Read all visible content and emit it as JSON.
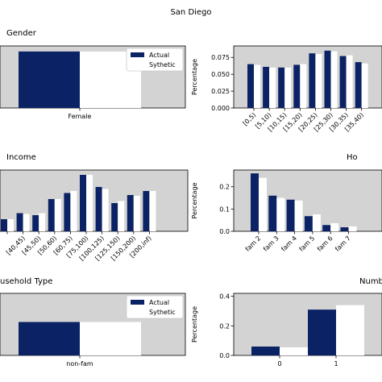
{
  "figure_title": "San Diego",
  "colors": {
    "actual": "#0b2265",
    "synthetic": "#ffffff",
    "plot_bg": "#d3d3d3"
  },
  "legend": {
    "actual": "Actual",
    "synthetic": "Sythetic"
  },
  "chart_data": [
    {
      "id": "gender",
      "type": "bar",
      "title": "Gender",
      "categories": [
        "Female"
      ],
      "series": [
        {
          "name": "Actual",
          "values": [
            0.51
          ]
        },
        {
          "name": "Sythetic",
          "values": [
            0.51
          ]
        }
      ],
      "ylim": [
        0,
        0.56
      ],
      "yticks": [],
      "ylabel": "",
      "legend": "top-right",
      "grid": false
    },
    {
      "id": "age",
      "type": "bar",
      "title": "",
      "categories": [
        "[0,5)",
        "[5,10)",
        "[10,15)",
        "[15,20)",
        "[20,25)",
        "[25,30)",
        "[30,35)",
        "[35,40)"
      ],
      "series": [
        {
          "name": "Actual",
          "values": [
            0.065,
            0.061,
            0.06,
            0.064,
            0.081,
            0.085,
            0.077,
            0.068
          ]
        },
        {
          "name": "Sythetic",
          "values": [
            0.064,
            0.06,
            0.06,
            0.065,
            0.08,
            0.084,
            0.078,
            0.066
          ]
        }
      ],
      "ylim": [
        0,
        0.092
      ],
      "yticks": [
        "0.000",
        "0.025",
        "0.050",
        "0.075"
      ],
      "ytick_values": [
        0,
        0.025,
        0.05,
        0.075
      ],
      "ylabel": "Percentage",
      "grid": false
    },
    {
      "id": "income",
      "type": "bar",
      "title": "Income",
      "categories": [
        "",
        "[40,45)",
        "[45,50)",
        "[50,60)",
        "[60,75)",
        "[75,100)",
        "[100,125)",
        "[125,150)",
        "[150,200)",
        "[200,inf)"
      ],
      "series": [
        {
          "name": "Actual",
          "values": [
            0.03,
            0.045,
            0.04,
            0.08,
            0.095,
            0.14,
            0.11,
            0.07,
            0.09,
            0.1
          ]
        },
        {
          "name": "Sythetic",
          "values": [
            0.03,
            0.043,
            0.045,
            0.08,
            0.1,
            0.14,
            0.105,
            0.075,
            0.088,
            0.1
          ]
        }
      ],
      "ylim": [
        0,
        0.152
      ],
      "yticks": [],
      "ylabel": "",
      "grid": false
    },
    {
      "id": "household_size",
      "type": "bar",
      "title": "Ho",
      "categories": [
        "fam 2",
        "fam 3",
        "fam 4",
        "fam 5",
        "fam 6",
        "fam 7"
      ],
      "series": [
        {
          "name": "Actual",
          "values": [
            0.26,
            0.16,
            0.142,
            0.068,
            0.028,
            0.018
          ]
        },
        {
          "name": "Sythetic",
          "values": [
            0.24,
            0.15,
            0.138,
            0.076,
            0.036,
            0.022
          ]
        }
      ],
      "ylim": [
        0,
        0.275
      ],
      "yticks": [
        "0.0",
        "0.1",
        "0.2"
      ],
      "ytick_values": [
        0,
        0.1,
        0.2
      ],
      "ylabel": "Percentage",
      "grid": false
    },
    {
      "id": "household_type",
      "type": "bar",
      "title": "usehold Type",
      "categories": [
        "non-fam"
      ],
      "series": [
        {
          "name": "Actual",
          "values": [
            0.35
          ]
        },
        {
          "name": "Sythetic",
          "values": [
            0.35
          ]
        }
      ],
      "ylim": [
        0,
        0.65
      ],
      "yticks": [],
      "ylabel": "",
      "legend": "top-right",
      "grid": false
    },
    {
      "id": "number",
      "type": "bar",
      "title": "Numb",
      "categories": [
        "0",
        "1"
      ],
      "series": [
        {
          "name": "Actual",
          "values": [
            0.06,
            0.31
          ]
        },
        {
          "name": "Sythetic",
          "values": [
            0.055,
            0.34
          ]
        }
      ],
      "ylim": [
        0,
        0.42
      ],
      "yticks": [
        "0.0",
        "0.2",
        "0.4"
      ],
      "ytick_values": [
        0,
        0.2,
        0.4
      ],
      "ylabel": "Percentage",
      "grid": false
    }
  ]
}
